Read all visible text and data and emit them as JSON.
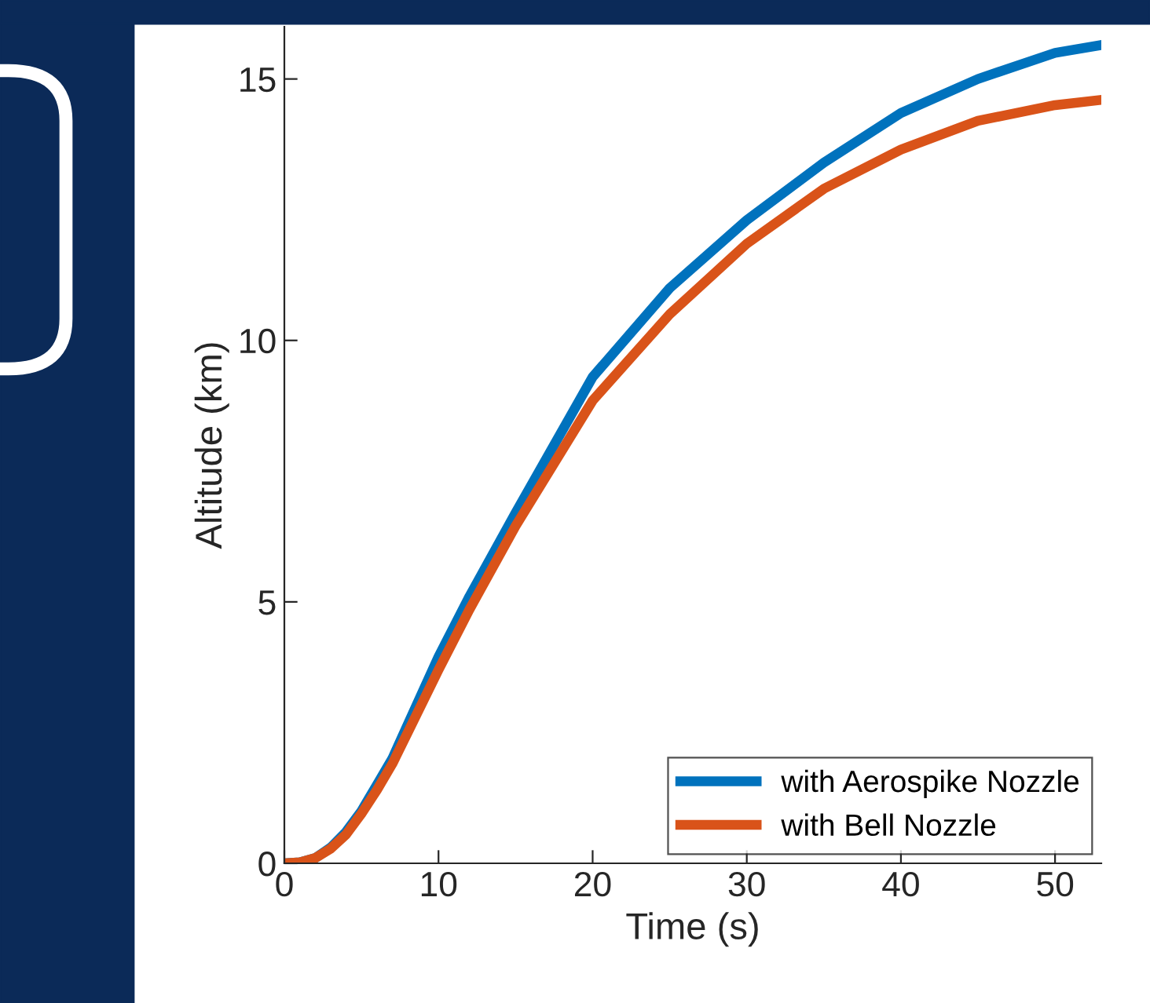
{
  "chart_data": {
    "type": "line",
    "xlabel": "Time (s)",
    "ylabel": "Altitude (km)",
    "xlim": [
      0,
      53
    ],
    "xticks": [
      0,
      10,
      20,
      30,
      40,
      50
    ],
    "ylim": [
      0,
      16
    ],
    "yticks": [
      0,
      5,
      10,
      15
    ],
    "grid": false,
    "legend": "bottom right",
    "marker": "none",
    "line_style": "solid",
    "series": [
      {
        "name": "with Aerospike Nozzle",
        "color": "#0072bd",
        "x": [
          0,
          1,
          2,
          3,
          4,
          5,
          6,
          7,
          8,
          9,
          10,
          12,
          15,
          20,
          25,
          30,
          35,
          40,
          45,
          50,
          53
        ],
        "values": [
          0,
          0.02,
          0.1,
          0.3,
          0.6,
          1.0,
          1.5,
          2.0,
          2.65,
          3.3,
          3.95,
          5.1,
          6.7,
          9.3,
          11.0,
          12.3,
          13.4,
          14.35,
          15.0,
          15.5,
          15.65
        ]
      },
      {
        "name": "with Bell Nozzle",
        "color": "#d95319",
        "x": [
          0,
          1,
          2,
          3,
          4,
          5,
          6,
          7,
          8,
          9,
          10,
          12,
          15,
          20,
          25,
          30,
          35,
          40,
          45,
          50,
          53
        ],
        "values": [
          0,
          0.02,
          0.1,
          0.28,
          0.55,
          0.95,
          1.4,
          1.9,
          2.5,
          3.1,
          3.7,
          4.85,
          6.45,
          8.85,
          10.5,
          11.85,
          12.9,
          13.65,
          14.2,
          14.5,
          14.6
        ]
      }
    ]
  }
}
